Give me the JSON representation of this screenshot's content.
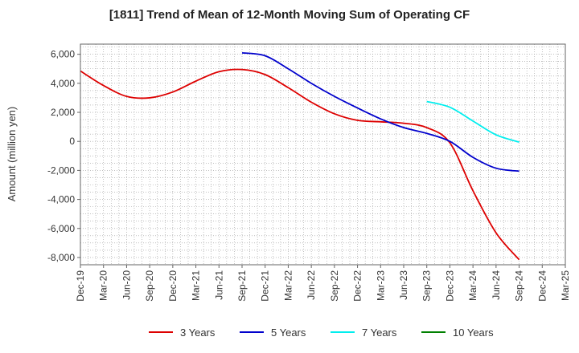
{
  "chart_data": {
    "type": "line",
    "title": "[1811]  Trend of Mean of 12-Month Moving Sum of Operating CF",
    "xlabel": "",
    "ylabel": "Amount (million yen)",
    "ylim": [
      -8500,
      6700
    ],
    "yticks": [
      6000,
      4000,
      2000,
      0,
      -2000,
      -4000,
      -6000,
      -8000
    ],
    "ytick_labels": [
      "6,000",
      "4,000",
      "2,000",
      "0",
      "-2,000",
      "-4,000",
      "-6,000",
      "-8,000"
    ],
    "xticks": [
      "Dec-19",
      "Mar-20",
      "Jun-20",
      "Sep-20",
      "Dec-20",
      "Mar-21",
      "Jun-21",
      "Sep-21",
      "Dec-21",
      "Mar-22",
      "Jun-22",
      "Sep-22",
      "Dec-22",
      "Mar-23",
      "Jun-23",
      "Sep-23",
      "Dec-23",
      "Mar-24",
      "Jun-24",
      "Sep-24",
      "Dec-24",
      "Mar-25"
    ],
    "grid": true,
    "legend_position": "bottom",
    "series": [
      {
        "name": "3 Years",
        "color": "#dd0000",
        "x": [
          "Dec-19",
          "Mar-20",
          "Jun-20",
          "Sep-20",
          "Dec-20",
          "Mar-21",
          "Jun-21",
          "Sep-21",
          "Dec-21",
          "Mar-22",
          "Jun-22",
          "Sep-22",
          "Dec-22",
          "Mar-23",
          "Jun-23",
          "Sep-23",
          "Dec-23",
          "Mar-24",
          "Jun-24",
          "Sep-24"
        ],
        "values": [
          4850,
          3850,
          3100,
          3000,
          3400,
          4150,
          4800,
          4950,
          4600,
          3700,
          2700,
          1900,
          1450,
          1350,
          1250,
          950,
          -100,
          -3400,
          -6300,
          -8150
        ]
      },
      {
        "name": "5 Years",
        "color": "#0000cc",
        "x": [
          "Sep-21",
          "Dec-21",
          "Mar-22",
          "Jun-22",
          "Sep-22",
          "Dec-22",
          "Mar-23",
          "Jun-23",
          "Sep-23",
          "Dec-23",
          "Mar-24",
          "Jun-24",
          "Sep-24"
        ],
        "values": [
          6100,
          5900,
          5000,
          4000,
          3100,
          2300,
          1550,
          950,
          550,
          0,
          -1100,
          -1850,
          -2050
        ]
      },
      {
        "name": "7 Years",
        "color": "#00eeee",
        "x": [
          "Sep-23",
          "Dec-23",
          "Mar-24",
          "Jun-24",
          "Sep-24"
        ],
        "values": [
          2750,
          2350,
          1400,
          450,
          -50
        ]
      },
      {
        "name": "10 Years",
        "color": "#008000",
        "x": [],
        "values": []
      }
    ]
  }
}
